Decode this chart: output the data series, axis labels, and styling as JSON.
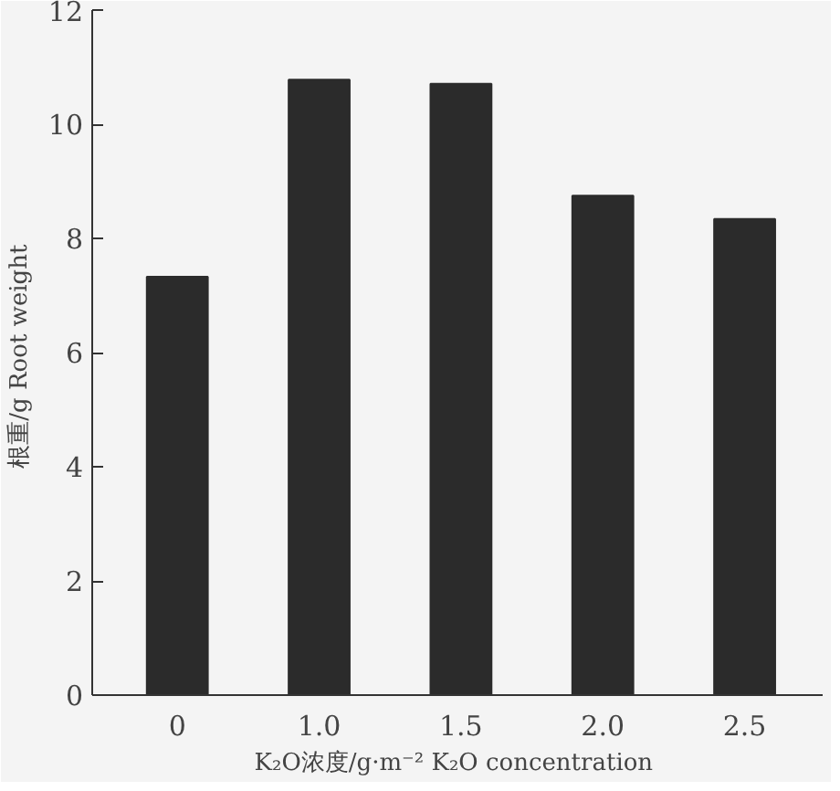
{
  "chart_data": {
    "type": "bar",
    "xlabel": "K₂O浓度/g·m⁻²  K₂O concentration",
    "ylabel": "根重/g  Root weight",
    "categories": [
      "0",
      "1.0",
      "1.5",
      "2.0",
      "2.5"
    ],
    "values": [
      7.33,
      10.78,
      10.71,
      8.75,
      8.34
    ],
    "color": "#2b2b2b",
    "ylim": [
      0,
      12
    ],
    "yticks": [
      0,
      2,
      4,
      6,
      8,
      10,
      12
    ],
    "grid": false
  }
}
